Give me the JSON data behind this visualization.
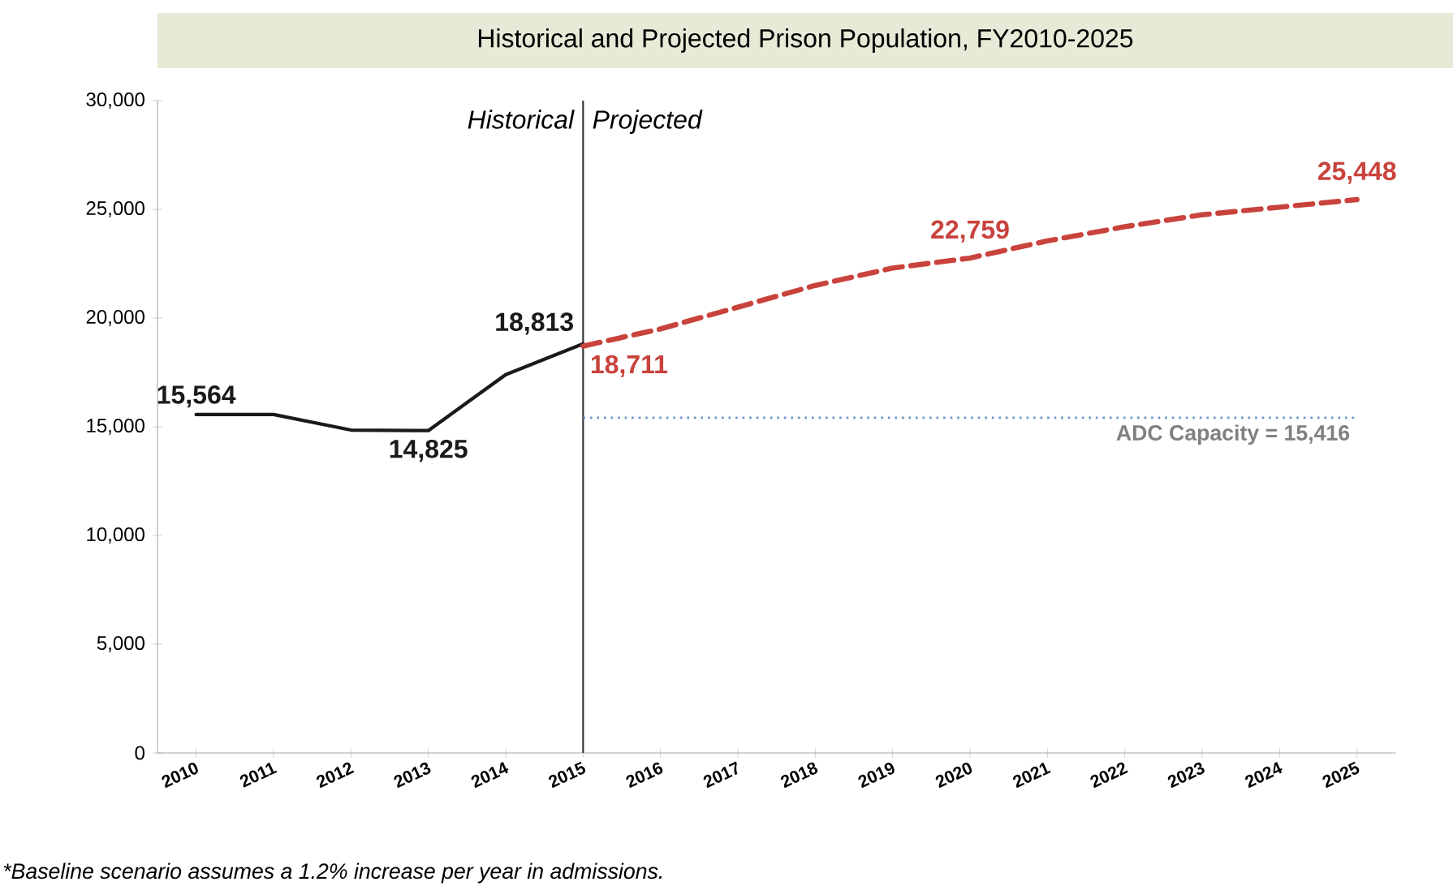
{
  "chart_data": {
    "type": "line",
    "title": "Historical and Projected Prison Population, FY2010-2025",
    "annotations": [
      "Historical",
      "Projected",
      "*Baseline scenario assumes a 1.2% increase per year in admissions."
    ],
    "series": [
      {
        "x": [
          2010,
          2011,
          2012,
          2013,
          2014,
          2015
        ],
        "values": [
          15564,
          15564,
          14850,
          14825,
          17400,
          18813
        ],
        "color": "#1a1a1a",
        "line_style": "solid",
        "value_labels": [
          "15,564",
          null,
          null,
          "14,825",
          null,
          "18,813"
        ]
      },
      {
        "x": [
          2015,
          2016,
          2017,
          2018,
          2019,
          2020,
          2021,
          2022,
          2023,
          2024,
          2025
        ],
        "values": [
          18711,
          19500,
          20500,
          21500,
          22300,
          22759,
          23550,
          24200,
          24750,
          25100,
          25448
        ],
        "color": "#c9433d",
        "line_style": "dashed",
        "value_labels": [
          "18,711",
          null,
          null,
          null,
          null,
          "22,759",
          null,
          null,
          null,
          null,
          "25,448"
        ]
      }
    ],
    "ref_lines": [
      {
        "axis": "x",
        "value": 2015,
        "color": "#333333",
        "line_style": "solid"
      },
      {
        "axis": "y",
        "value": 15416,
        "label": "ADC Capacity = 15,416",
        "color": "#6f93c8",
        "line_style": "dotted"
      }
    ],
    "xlim": [
      2009.5,
      2025.5
    ],
    "xticks": [
      2010,
      2011,
      2012,
      2013,
      2014,
      2015,
      2016,
      2017,
      2018,
      2019,
      2020,
      2021,
      2022,
      2023,
      2024,
      2025
    ],
    "ylim": [
      0,
      30000
    ],
    "yticks": [
      {
        "value": 0,
        "label": "0"
      },
      {
        "value": 5000,
        "label": "5,000"
      },
      {
        "value": 10000,
        "label": "10,000"
      },
      {
        "value": 15000,
        "label": "15,000"
      },
      {
        "value": 20000,
        "label": "20,000"
      },
      {
        "value": 25000,
        "label": "25,000"
      },
      {
        "value": 30000,
        "label": "30,000"
      }
    ],
    "grid": false
  }
}
